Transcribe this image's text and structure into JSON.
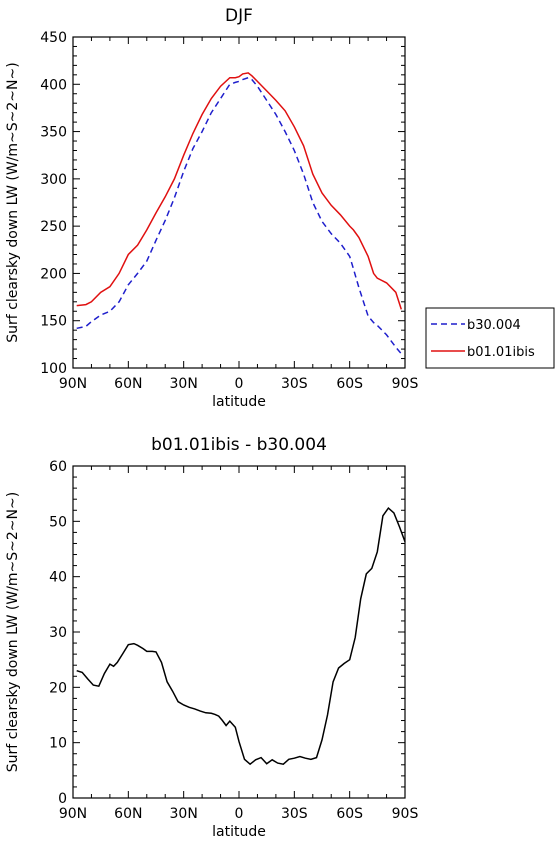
{
  "chart_data": [
    {
      "type": "line",
      "title": "DJF",
      "xlabel": "latitude",
      "ylabel": "Surf clearsky down LW (W/m~S~2~N~)",
      "xlim": [
        -90,
        90
      ],
      "ylim": [
        100,
        450
      ],
      "x_ticks": [
        -90,
        -60,
        -30,
        0,
        30,
        60,
        90
      ],
      "x_tick_labels": [
        "90N",
        "60N",
        "30N",
        "0",
        "30S",
        "60S",
        "90S"
      ],
      "y_ticks": [
        100,
        150,
        200,
        250,
        300,
        350,
        400,
        450
      ],
      "y_tick_labels": [
        "100",
        "150",
        "200",
        "250",
        "300",
        "350",
        "400",
        "450"
      ],
      "legend_position": "right",
      "x": [
        -88,
        -83,
        -80,
        -75,
        -70,
        -65,
        -60,
        -55,
        -50,
        -45,
        -40,
        -35,
        -30,
        -25,
        -20,
        -15,
        -10,
        -5,
        -2,
        0,
        2,
        5,
        7,
        10,
        15,
        20,
        25,
        30,
        35,
        40,
        45,
        50,
        55,
        60,
        62,
        65,
        70,
        73,
        75,
        80,
        85,
        88
      ],
      "series": [
        {
          "name": "b30.004",
          "color": "#1f1fcc",
          "dash": "dashed",
          "values": [
            142,
            144,
            149,
            156,
            160,
            170,
            188,
            200,
            213,
            235,
            256,
            280,
            308,
            332,
            350,
            370,
            385,
            400,
            402,
            403,
            405,
            407,
            405,
            398,
            383,
            368,
            350,
            330,
            305,
            275,
            255,
            242,
            232,
            218,
            205,
            185,
            155,
            148,
            145,
            135,
            122,
            115
          ]
        },
        {
          "name": "b01.01ibis",
          "color": "#e01010",
          "dash": "solid",
          "values": [
            166,
            167,
            170,
            180,
            186,
            200,
            220,
            230,
            246,
            264,
            281,
            300,
            325,
            348,
            368,
            385,
            398,
            407,
            407,
            408,
            411,
            412,
            409,
            403,
            393,
            383,
            372,
            355,
            335,
            305,
            285,
            272,
            262,
            250,
            246,
            238,
            218,
            200,
            195,
            190,
            180,
            162
          ]
        }
      ]
    },
    {
      "type": "line",
      "title": "b01.01ibis - b30.004",
      "xlabel": "latitude",
      "ylabel": "Surf clearsky down LW (W/m~S~2~N~)",
      "xlim": [
        -90,
        90
      ],
      "ylim": [
        0,
        60
      ],
      "x_ticks": [
        -90,
        -60,
        -30,
        0,
        30,
        60,
        90
      ],
      "x_tick_labels": [
        "90N",
        "60N",
        "30N",
        "0",
        "30S",
        "60S",
        "90S"
      ],
      "y_ticks": [
        0,
        10,
        20,
        30,
        40,
        50,
        60
      ],
      "y_tick_labels": [
        "0",
        "10",
        "20",
        "30",
        "40",
        "50",
        "60"
      ],
      "x": [
        -88,
        -85,
        -82,
        -79,
        -76,
        -73,
        -70,
        -68,
        -66,
        -63,
        -60,
        -57,
        -55,
        -52,
        -50,
        -47,
        -45,
        -42,
        -39,
        -36,
        -33,
        -30,
        -27,
        -24,
        -21,
        -18,
        -15,
        -13,
        -11,
        -9,
        -7,
        -5,
        -2,
        0,
        3,
        6,
        9,
        12,
        15,
        18,
        21,
        24,
        27,
        30,
        33,
        36,
        39,
        42,
        45,
        48,
        51,
        54,
        57,
        60,
        63,
        66,
        69,
        72,
        75,
        78,
        81,
        84,
        87,
        90
      ],
      "series": [
        {
          "name": "",
          "color": "#000000",
          "dash": "solid",
          "values": [
            23,
            22.7,
            21.5,
            20.4,
            20.2,
            22.5,
            24.2,
            23.8,
            24.5,
            26.1,
            27.7,
            27.9,
            27.6,
            27,
            26.5,
            26.5,
            26.4,
            24.5,
            21,
            19.3,
            17.4,
            16.8,
            16.4,
            16.1,
            15.7,
            15.4,
            15.3,
            15.1,
            14.8,
            14,
            13.1,
            13.9,
            12.8,
            10.2,
            7,
            6.1,
            6.9,
            7.3,
            6.2,
            6.9,
            6.3,
            6.1,
            7,
            7.2,
            7.5,
            7.2,
            7.0,
            7.3,
            10.5,
            15,
            21,
            23.5,
            24.3,
            25,
            29,
            36,
            40.5,
            41.5,
            44.5,
            51,
            52.4,
            51.5,
            49,
            46.3
          ]
        }
      ]
    }
  ]
}
